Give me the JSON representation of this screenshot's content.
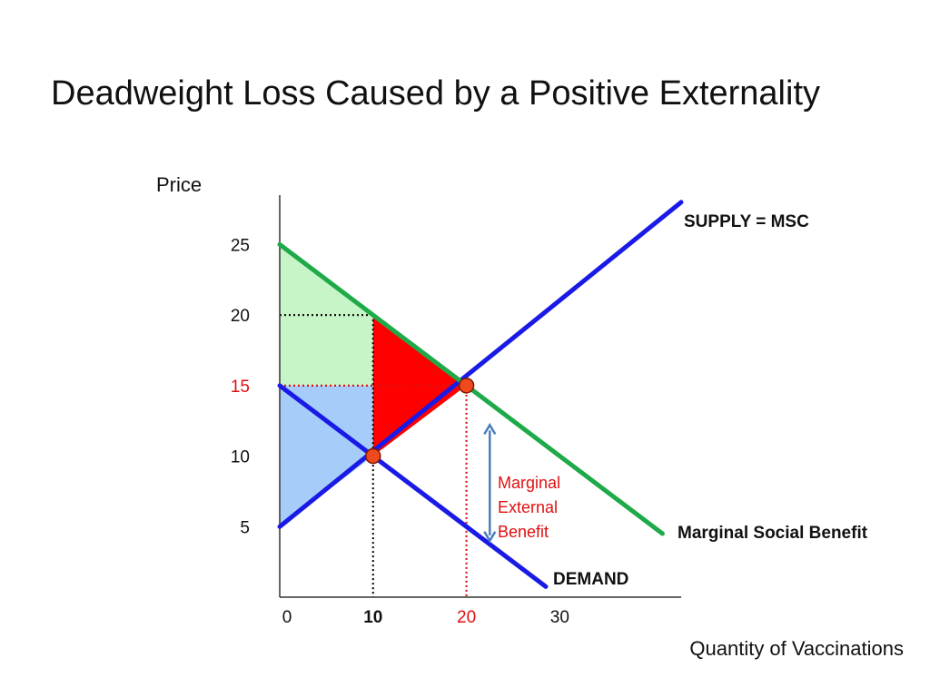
{
  "title": "Deadweight Loss Caused by a Positive Externality",
  "chart_data": {
    "type": "line",
    "ylabel": "Price",
    "xlabel": "Quantity of Vaccinations",
    "y_ticks": [
      {
        "label": "25",
        "value": 25,
        "color": "#111111"
      },
      {
        "label": "20",
        "value": 20,
        "color": "#111111"
      },
      {
        "label": "15",
        "value": 15,
        "color": "#e01010"
      },
      {
        "label": "10",
        "value": 10,
        "color": "#111111"
      },
      {
        "label": "5",
        "value": 5,
        "color": "#111111"
      }
    ],
    "x_ticks": [
      {
        "label": "0",
        "value": 0,
        "color": "#111111",
        "bold": false
      },
      {
        "label": "10",
        "value": 10,
        "color": "#111111",
        "bold": true
      },
      {
        "label": "20",
        "value": 20,
        "color": "#e01010",
        "bold": false
      },
      {
        "label": "30",
        "value": 30,
        "color": "#111111",
        "bold": false
      }
    ],
    "xlim": [
      0,
      43
    ],
    "ylim": [
      0,
      28.5
    ],
    "series": [
      {
        "name": "SUPPLY = MSC",
        "color": "#1a1ae6",
        "x": [
          0,
          43
        ],
        "y": [
          5,
          28
        ]
      },
      {
        "name": "Marginal Social Benefit",
        "color": "#1faa4a",
        "x": [
          0,
          41
        ],
        "y": [
          25,
          4.5
        ]
      },
      {
        "name": "DEMAND",
        "color": "#1a1ae6",
        "x": [
          0,
          28.5
        ],
        "y": [
          15,
          0.75
        ]
      }
    ],
    "points": [
      {
        "x": 10,
        "y": 10
      },
      {
        "x": 20,
        "y": 15
      }
    ],
    "regions": [
      {
        "name": "consumer-surplus-green",
        "color": "#c8f5c8",
        "polygon": [
          [
            0,
            25
          ],
          [
            10,
            20
          ],
          [
            10,
            15
          ],
          [
            0,
            15
          ]
        ]
      },
      {
        "name": "consumer-surplus-blue",
        "color": "#a6cdfa",
        "polygon": [
          [
            0,
            15
          ],
          [
            10,
            15
          ],
          [
            10,
            10
          ],
          [
            0,
            5
          ]
        ]
      },
      {
        "name": "deadweight-loss",
        "color": "#ff0000",
        "polygon": [
          [
            10,
            20
          ],
          [
            20,
            15
          ],
          [
            10,
            10
          ]
        ]
      }
    ],
    "guides": [
      {
        "name": "guide-price-20",
        "color": "#111111",
        "from": [
          0,
          20
        ],
        "to": [
          10,
          20
        ]
      },
      {
        "name": "guide-price-15",
        "color": "#e01010",
        "from": [
          0,
          15
        ],
        "to": [
          20,
          15
        ]
      },
      {
        "name": "guide-qty-10",
        "color": "#111111",
        "from": [
          10,
          20
        ],
        "to": [
          10,
          0
        ]
      },
      {
        "name": "guide-qty-20",
        "color": "#e01010",
        "from": [
          20,
          15
        ],
        "to": [
          20,
          0
        ]
      }
    ],
    "annotation": {
      "lines": [
        "Marginal",
        "External",
        "Benefit"
      ],
      "color": "#e01010",
      "arrow_color": "#4a7ebb",
      "arrow_x": 22.5,
      "arrow_y": [
        4.0,
        12.2
      ]
    },
    "curve_labels": {
      "supply": "SUPPLY = MSC",
      "msb": "Marginal Social Benefit",
      "demand": "DEMAND"
    }
  }
}
